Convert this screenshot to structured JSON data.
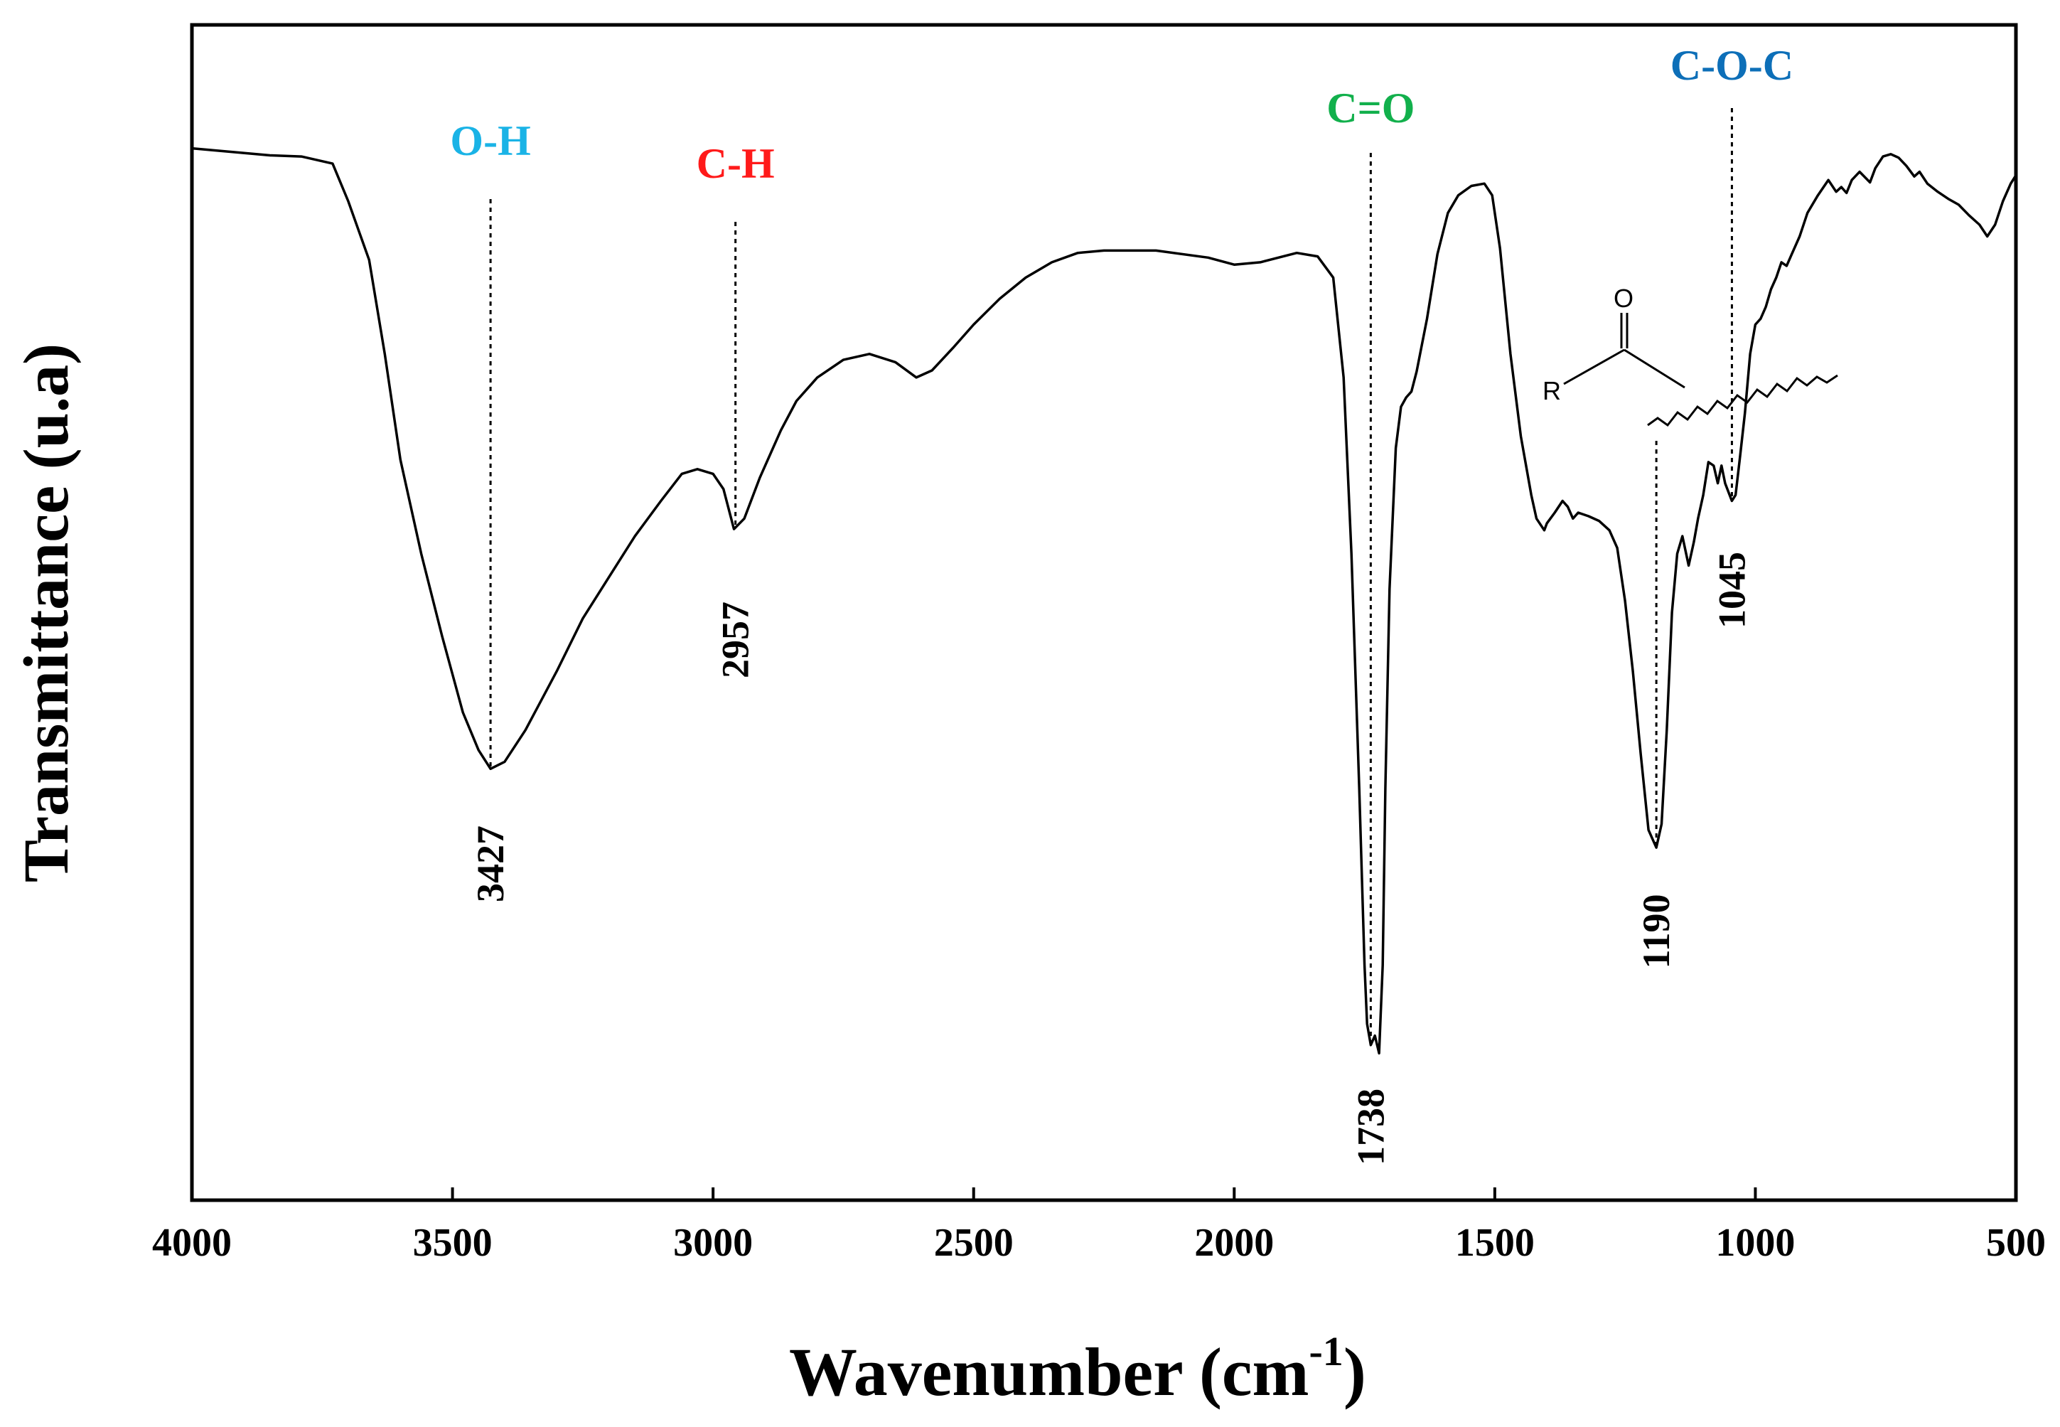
{
  "chart_data": {
    "type": "line",
    "title": "",
    "xlabel": "Wavenumber (cm",
    "xlabel_sup": "-1",
    "xlabel_close": ")",
    "ylabel": "Transmittance (u.a)",
    "xlim": [
      4000,
      500
    ],
    "ylim": [
      0,
      100
    ],
    "x_reversed": true,
    "grid": false,
    "xticks": [
      4000,
      3500,
      3000,
      2500,
      2000,
      1500,
      1000,
      500
    ],
    "xtick_labels": [
      "4000",
      "3500",
      "3000",
      "2500",
      "2000",
      "1500",
      "1000",
      "500"
    ],
    "series": [
      {
        "name": "spectrum",
        "color": "#000000",
        "points": [
          [
            4000,
            89.5
          ],
          [
            3850,
            88.9
          ],
          [
            3790,
            88.8
          ],
          [
            3730,
            88.2
          ],
          [
            3700,
            85.0
          ],
          [
            3660,
            80.0
          ],
          [
            3630,
            72.0
          ],
          [
            3600,
            63.0
          ],
          [
            3560,
            55.0
          ],
          [
            3520,
            48.0
          ],
          [
            3480,
            41.5
          ],
          [
            3450,
            38.3
          ],
          [
            3427,
            36.7
          ],
          [
            3400,
            37.3
          ],
          [
            3360,
            40.0
          ],
          [
            3300,
            45.0
          ],
          [
            3250,
            49.5
          ],
          [
            3200,
            53.0
          ],
          [
            3150,
            56.5
          ],
          [
            3100,
            59.5
          ],
          [
            3060,
            61.8
          ],
          [
            3030,
            62.2
          ],
          [
            3000,
            61.8
          ],
          [
            2980,
            60.5
          ],
          [
            2960,
            57.1
          ],
          [
            2940,
            58.0
          ],
          [
            2910,
            61.5
          ],
          [
            2870,
            65.5
          ],
          [
            2840,
            68.0
          ],
          [
            2800,
            70.0
          ],
          [
            2750,
            71.5
          ],
          [
            2700,
            72.0
          ],
          [
            2650,
            71.3
          ],
          [
            2610,
            70.0
          ],
          [
            2580,
            70.6
          ],
          [
            2540,
            72.5
          ],
          [
            2500,
            74.5
          ],
          [
            2450,
            76.7
          ],
          [
            2400,
            78.5
          ],
          [
            2350,
            79.8
          ],
          [
            2300,
            80.6
          ],
          [
            2250,
            80.8
          ],
          [
            2150,
            80.8
          ],
          [
            2050,
            80.2
          ],
          [
            2000,
            79.6
          ],
          [
            1950,
            79.8
          ],
          [
            1880,
            80.6
          ],
          [
            1840,
            80.3
          ],
          [
            1810,
            78.5
          ],
          [
            1790,
            70.0
          ],
          [
            1775,
            55.0
          ],
          [
            1760,
            35.0
          ],
          [
            1750,
            20.0
          ],
          [
            1745,
            15.0
          ],
          [
            1738,
            13.2
          ],
          [
            1730,
            14.0
          ],
          [
            1722,
            12.5
          ],
          [
            1715,
            20.0
          ],
          [
            1710,
            35.0
          ],
          [
            1702,
            52.0
          ],
          [
            1690,
            64.0
          ],
          [
            1680,
            67.5
          ],
          [
            1670,
            68.3
          ],
          [
            1660,
            68.8
          ],
          [
            1650,
            70.5
          ],
          [
            1630,
            75.0
          ],
          [
            1610,
            80.5
          ],
          [
            1590,
            84.0
          ],
          [
            1570,
            85.5
          ],
          [
            1545,
            86.3
          ],
          [
            1520,
            86.5
          ],
          [
            1505,
            85.5
          ],
          [
            1490,
            81.0
          ],
          [
            1470,
            72.0
          ],
          [
            1450,
            65.0
          ],
          [
            1430,
            60.0
          ],
          [
            1420,
            58.0
          ],
          [
            1405,
            57.0
          ],
          [
            1400,
            57.6
          ],
          [
            1385,
            58.5
          ],
          [
            1370,
            59.5
          ],
          [
            1360,
            59.0
          ],
          [
            1350,
            58.0
          ],
          [
            1340,
            58.5
          ],
          [
            1320,
            58.2
          ],
          [
            1300,
            57.8
          ],
          [
            1280,
            57.0
          ],
          [
            1265,
            55.5
          ],
          [
            1250,
            51.0
          ],
          [
            1235,
            45.0
          ],
          [
            1220,
            38.0
          ],
          [
            1205,
            31.5
          ],
          [
            1190,
            30.0
          ],
          [
            1180,
            32.0
          ],
          [
            1170,
            40.0
          ],
          [
            1160,
            50.0
          ],
          [
            1150,
            55.0
          ],
          [
            1140,
            56.5
          ],
          [
            1128,
            54.0
          ],
          [
            1118,
            56.0
          ],
          [
            1110,
            58.0
          ],
          [
            1100,
            60.0
          ],
          [
            1090,
            62.8
          ],
          [
            1080,
            62.5
          ],
          [
            1072,
            61.0
          ],
          [
            1065,
            62.5
          ],
          [
            1058,
            61.0
          ],
          [
            1045,
            59.5
          ],
          [
            1038,
            60.0
          ],
          [
            1030,
            63.0
          ],
          [
            1020,
            67.0
          ],
          [
            1010,
            72.0
          ],
          [
            1000,
            74.5
          ],
          [
            990,
            75.0
          ],
          [
            980,
            76.0
          ],
          [
            970,
            77.5
          ],
          [
            960,
            78.5
          ],
          [
            950,
            79.8
          ],
          [
            940,
            79.5
          ],
          [
            930,
            80.5
          ],
          [
            915,
            82.0
          ],
          [
            900,
            84.0
          ],
          [
            880,
            85.5
          ],
          [
            860,
            86.8
          ],
          [
            845,
            85.8
          ],
          [
            835,
            86.2
          ],
          [
            825,
            85.7
          ],
          [
            815,
            86.8
          ],
          [
            800,
            87.5
          ],
          [
            780,
            86.6
          ],
          [
            770,
            87.8
          ],
          [
            755,
            88.8
          ],
          [
            740,
            89.0
          ],
          [
            725,
            88.7
          ],
          [
            710,
            88.0
          ],
          [
            695,
            87.1
          ],
          [
            685,
            87.5
          ],
          [
            670,
            86.5
          ],
          [
            650,
            85.8
          ],
          [
            630,
            85.2
          ],
          [
            610,
            84.7
          ],
          [
            590,
            83.8
          ],
          [
            570,
            83.0
          ],
          [
            555,
            82.0
          ],
          [
            540,
            83.0
          ],
          [
            525,
            85.0
          ],
          [
            510,
            86.5
          ],
          [
            500,
            87.2
          ]
        ]
      }
    ],
    "annotations": [
      {
        "group": "O-H",
        "color": "#1ab3e6",
        "wavenumber": 3427,
        "label": "3427"
      },
      {
        "group": "C-H",
        "color": "#ff1a1a",
        "wavenumber": 2957,
        "label": "2957"
      },
      {
        "group": "C=O",
        "color": "#12b04c",
        "wavenumber": 1738,
        "label": "1738"
      },
      {
        "group": "",
        "color": "#000000",
        "wavenumber": 1190,
        "label": "1190"
      },
      {
        "group": "C-O-C",
        "color": "#0d6fb8",
        "wavenumber": 1045,
        "label": "1045"
      }
    ],
    "structure_inset": {
      "atom_top": "O",
      "atom_left": "R"
    }
  }
}
